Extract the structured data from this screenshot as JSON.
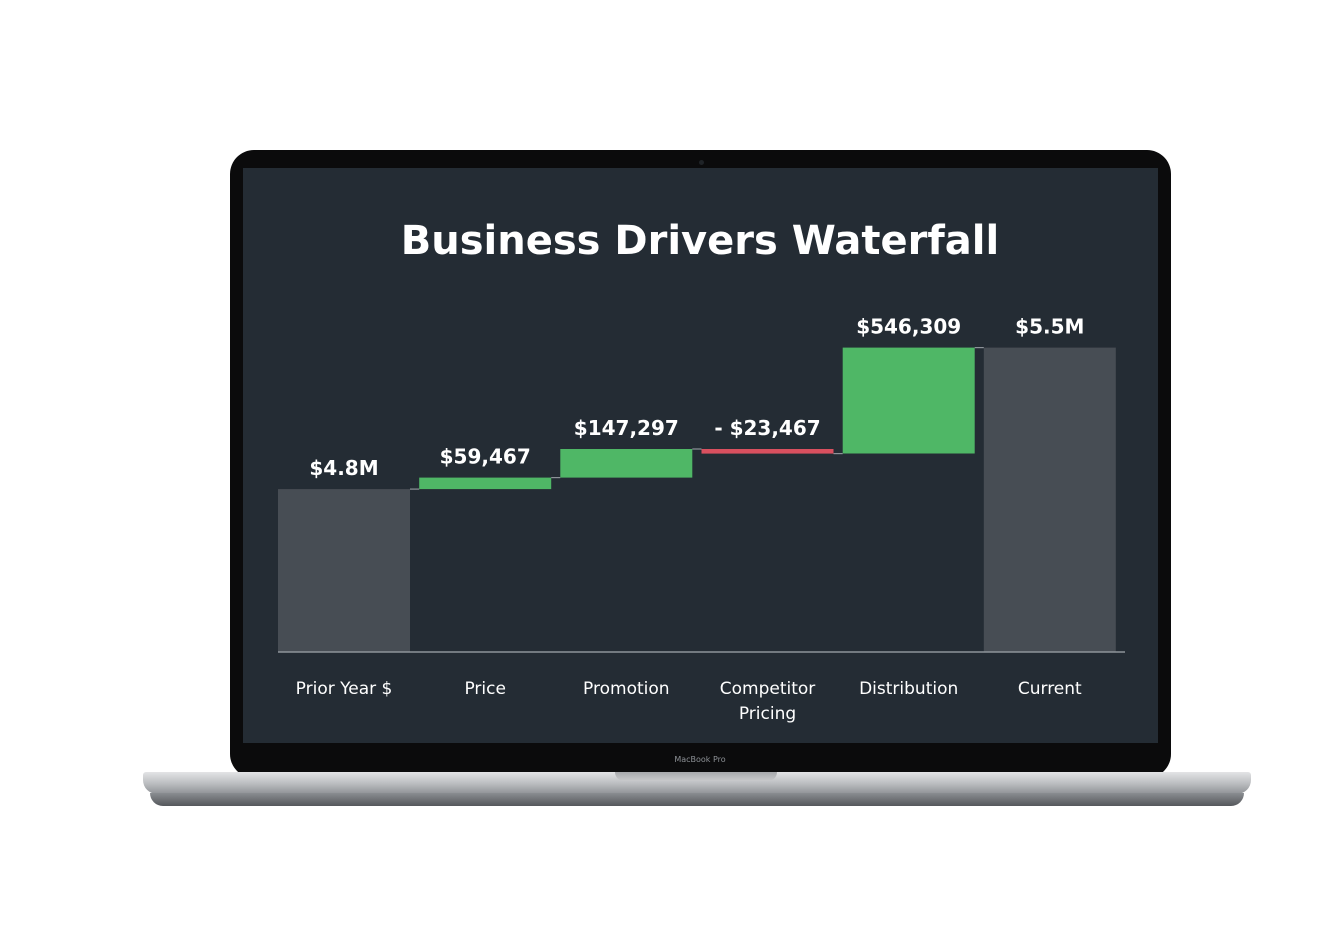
{
  "device": {
    "brand_label": "MacBook Pro"
  },
  "chart_data": {
    "type": "waterfall",
    "title": "Business Drivers Waterfall",
    "categories": [
      "Prior Year $",
      "Price",
      "Promotion",
      "Competitor Pricing",
      "Distribution",
      "Current"
    ],
    "category_lines": [
      [
        "Prior Year $"
      ],
      [
        "Price"
      ],
      [
        "Promotion"
      ],
      [
        "Competitor",
        "Pricing"
      ],
      [
        "Distribution"
      ],
      [
        "Current"
      ]
    ],
    "values": [
      4800000,
      59467,
      147297,
      -23467,
      546309,
      5529606
    ],
    "kinds": [
      "total",
      "increase",
      "increase",
      "decrease",
      "increase",
      "total"
    ],
    "data_labels": [
      "$4.8M",
      "$59,467",
      "$147,297",
      "- $23,467",
      "$546,309",
      "$5.5M"
    ],
    "ylim": [
      3960000,
      5600000
    ],
    "grid": false,
    "legend": "none",
    "colors": {
      "total": "#474d54",
      "increase": "#4fb766",
      "decrease": "#d9505f",
      "background": "#242c34",
      "text": "#ffffff",
      "axis": "#8d9399"
    }
  }
}
